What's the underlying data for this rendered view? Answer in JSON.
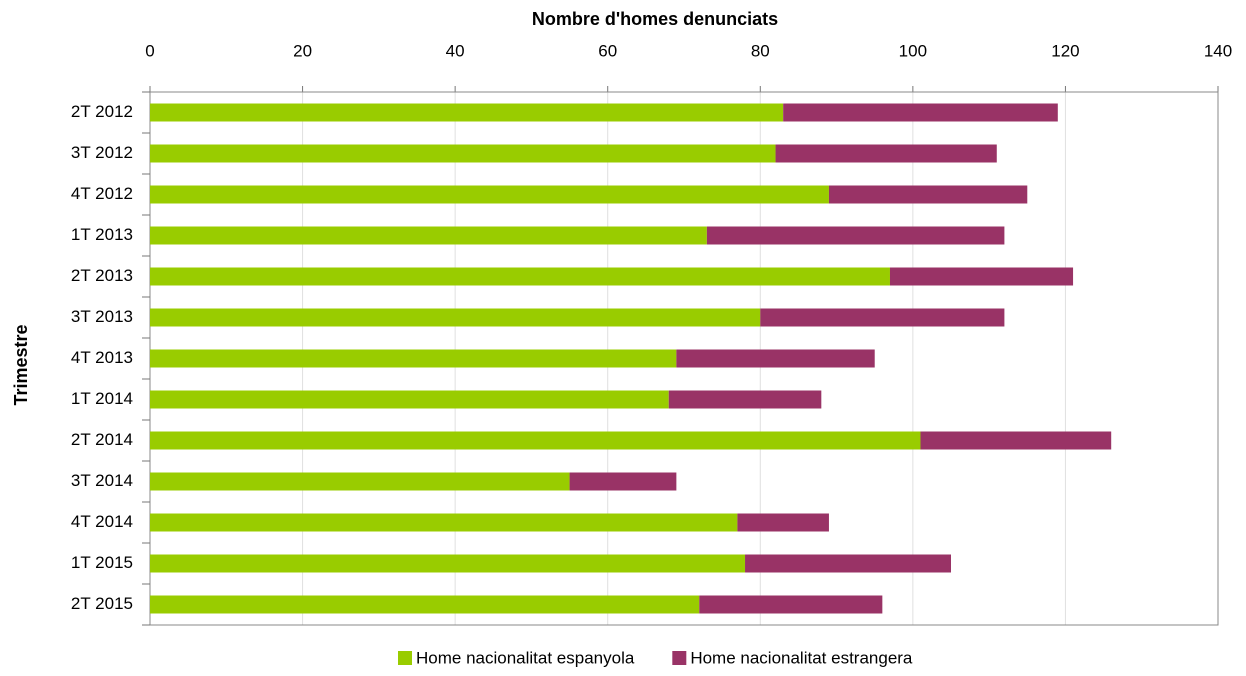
{
  "chart_data": {
    "type": "stacked_barh",
    "x_label": "Nombre d'homes denunciats",
    "y_label": "Trimestre",
    "categories": [
      "2T 2012",
      "3T 2012",
      "4T 2012",
      "1T 2013",
      "2T 2013",
      "3T 2013",
      "4T 2013",
      "1T 2014",
      "2T 2014",
      "3T 2014",
      "4T 2014",
      "1T 2015",
      "2T 2015"
    ],
    "series": [
      {
        "name": "Home nacionalitat espanyola",
        "color": "#99cc00",
        "values": [
          83,
          82,
          89,
          73,
          97,
          80,
          69,
          68,
          101,
          55,
          77,
          78,
          72
        ]
      },
      {
        "name": "Home nacionalitat estrangera",
        "color": "#993366",
        "values": [
          36,
          29,
          26,
          39,
          24,
          32,
          26,
          20,
          25,
          14,
          12,
          27,
          24
        ]
      }
    ],
    "xlim": [
      0,
      140
    ],
    "xticks": [
      0,
      20,
      40,
      60,
      80,
      100,
      120,
      140
    ],
    "grid": true
  }
}
